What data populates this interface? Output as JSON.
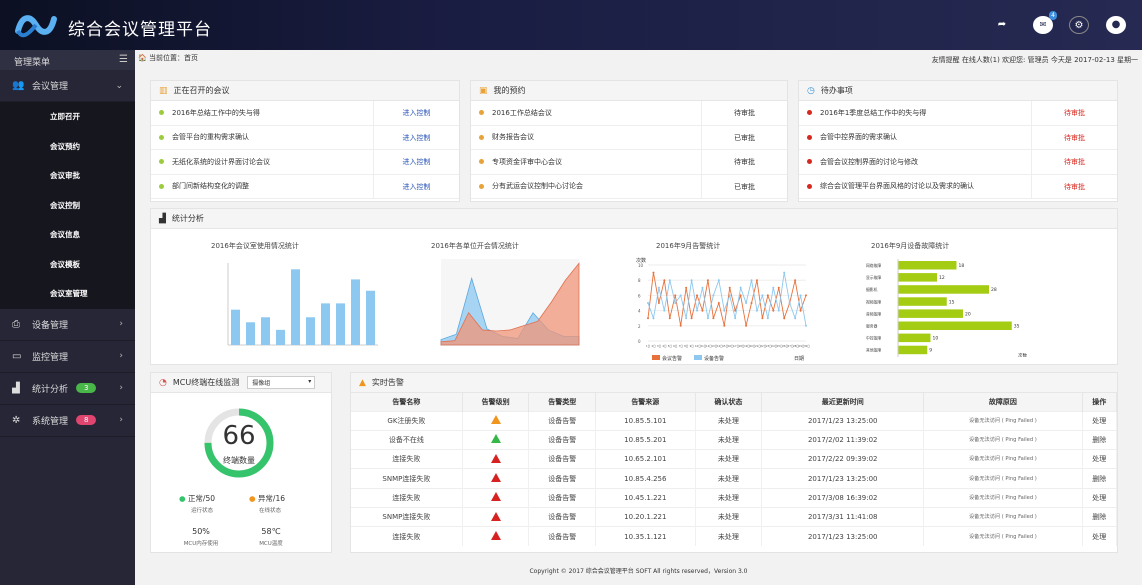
{
  "app": {
    "title": "综合会议管理平台",
    "mail_badge": "4"
  },
  "sidebar": {
    "header": "管理菜单",
    "menus": [
      {
        "label": "会议管理",
        "icon": "users-icon"
      },
      {
        "label": "设备管理",
        "icon": "printer-icon"
      },
      {
        "label": "监控管理",
        "icon": "monitor-icon"
      },
      {
        "label": "统计分析",
        "icon": "chart-icon",
        "badge": "3"
      },
      {
        "label": "系统管理",
        "icon": "gear-icon",
        "badge": "8"
      }
    ],
    "submenu": [
      "立即召开",
      "会议预约",
      "会议审批",
      "会议控制",
      "会议信息",
      "会议模板",
      "会议室管理"
    ]
  },
  "breadcrumb": {
    "label": "当前位置：首页",
    "right": "友情提醒  在线人数(1) 欢迎您: 管理员 今天是 2017-02-13 星期一"
  },
  "meetings": {
    "title": "正在召开的会议",
    "items": [
      {
        "name": "2016年总结工作中的失与得",
        "action": "进入控制"
      },
      {
        "name": "会管平台的重构需求确认",
        "action": "进入控制"
      },
      {
        "name": "无纸化系统的设计界面讨论会议",
        "action": "进入控制"
      },
      {
        "name": "部门间新结构变化的调整",
        "action": "进入控制"
      }
    ]
  },
  "reservations": {
    "title": "我的预约",
    "items": [
      {
        "name": "2016工作总结会议",
        "status": "待审批"
      },
      {
        "name": "财务报告会议",
        "status": "已审批"
      },
      {
        "name": "专项资金评审中心会议",
        "status": "待审批"
      },
      {
        "name": "分有武运会议控制中心讨论会",
        "status": "已审批"
      }
    ]
  },
  "todos": {
    "title": "待办事项",
    "items": [
      {
        "name": "2016年1季度总结工作中的失与得",
        "status": "待审批"
      },
      {
        "name": "会管中控界面的需求确认",
        "status": "待审批"
      },
      {
        "name": "会管会议控制界面的讨论与修改",
        "status": "待审批"
      },
      {
        "name": "综合会议管理平台界面风格的讨论以及需求的确认",
        "status": "待审批"
      }
    ]
  },
  "stats": {
    "title": "统计分析",
    "charts": [
      "2016年会议室使用情况统计",
      "2016年各单位开会情况统计",
      "2016年9月告警统计",
      "2016年9月设备故障统计"
    ]
  },
  "chart_data": [
    {
      "type": "bar",
      "title": "2016年会议室使用情况统计",
      "values": [
        28,
        18,
        22,
        12,
        60,
        22,
        33,
        33,
        52,
        43
      ]
    },
    {
      "type": "area",
      "title": "2016年各单位开会情况统计",
      "series": [
        {
          "name": "s1",
          "values": [
            5,
            10,
            62,
            15,
            8,
            6,
            30,
            14,
            8,
            8
          ]
        },
        {
          "name": "s2",
          "values": [
            3,
            4,
            30,
            14,
            13,
            14,
            18,
            22,
            40,
            60,
            76
          ]
        }
      ]
    },
    {
      "type": "line",
      "title": "2016年9月告警统计",
      "ylabel": "次数",
      "xlabel": "日期",
      "ylim": [
        0,
        10
      ],
      "x": [
        "1日",
        "2日",
        "3日",
        "4日",
        "5日",
        "6日",
        "7日",
        "8日",
        "9日",
        "10日",
        "11日",
        "12日",
        "13日",
        "14日",
        "15日",
        "16日",
        "17日",
        "18日",
        "19日",
        "20日",
        "21日",
        "22日",
        "23日",
        "24日",
        "25日",
        "26日",
        "27日",
        "28日",
        "29日",
        "30日"
      ],
      "series": [
        {
          "name": "会议告警",
          "color": "#e8703a",
          "values": [
            3,
            9,
            5,
            8,
            3,
            6,
            2,
            7,
            3,
            6,
            4,
            8,
            3,
            5,
            2,
            7,
            4,
            6,
            2,
            5,
            8,
            3,
            6,
            4,
            7,
            3,
            5,
            8,
            4,
            6
          ]
        },
        {
          "name": "设备告警",
          "color": "#8cc8f0",
          "values": [
            5,
            3,
            7,
            4,
            8,
            5,
            6,
            3,
            8,
            4,
            7,
            3,
            6,
            8,
            4,
            6,
            3,
            7,
            5,
            8,
            4,
            6,
            3,
            7,
            4,
            9,
            5,
            3,
            6,
            2
          ]
        }
      ]
    },
    {
      "type": "bar",
      "orientation": "horizontal",
      "title": "2016年9月设备故障统计",
      "xlabel": "次数",
      "categories": [
        "网络故障",
        "显示故障",
        "摄影机",
        "视频故障",
        "音频故障",
        "服务器",
        "中控故障",
        "其他故障"
      ],
      "values": [
        18,
        12,
        28,
        15,
        20,
        35,
        10,
        9
      ],
      "xlim": [
        0,
        40
      ]
    }
  ],
  "mcu": {
    "title": "MCU终端在线监测",
    "select": "摄像组",
    "count": "66",
    "count_label": "终端数量",
    "normal": "正常/50",
    "normal_sub": "运行状态",
    "abnormal": "异常/16",
    "abnormal_sub": "在线状态",
    "mem": "50%",
    "mem_label": "MCU内存使用",
    "temp": "58℃",
    "temp_label": "MCU温度"
  },
  "alarms": {
    "title": "实时告警",
    "headers": [
      "告警名称",
      "告警级别",
      "告警类型",
      "告警来源",
      "确认状态",
      "最近更新时间",
      "故障原因",
      "操作"
    ],
    "rows": [
      {
        "name": "GK注册失败",
        "level": "orange",
        "type": "设备告警",
        "src": "10.85.5.101",
        "state": "未处理",
        "time": "2017/1/23 13:25:00",
        "reason": "设备无法访问 ( Ping Failed )",
        "op": "处理"
      },
      {
        "name": "设备不在线",
        "level": "green",
        "type": "设备告警",
        "src": "10.85.5.201",
        "state": "未处理",
        "time": "2017/2/02 11:39:02",
        "reason": "设备无法访问 ( Ping Failed )",
        "op": "删除"
      },
      {
        "name": "连接失败",
        "level": "red",
        "type": "设备告警",
        "src": "10.65.2.101",
        "state": "未处理",
        "time": "2017/2/22 09:39:02",
        "reason": "设备无法访问 ( Ping Failed )",
        "op": "处理"
      },
      {
        "name": "SNMP连接失败",
        "level": "red",
        "type": "设备告警",
        "src": "10.85.4.256",
        "state": "未处理",
        "time": "2017/1/23 13:25:00",
        "reason": "设备无法访问 ( Ping Failed )",
        "op": "删除"
      },
      {
        "name": "连接失败",
        "level": "red",
        "type": "设备告警",
        "src": "10.45.1.221",
        "state": "未处理",
        "time": "2017/3/08 16:39:02",
        "reason": "设备无法访问 ( Ping Failed )",
        "op": "处理"
      },
      {
        "name": "SNMP连接失败",
        "level": "red",
        "type": "设备告警",
        "src": "10.20.1.221",
        "state": "未处理",
        "time": "2017/3/31 11:41:08",
        "reason": "设备无法访问 ( Ping Failed )",
        "op": "删除"
      },
      {
        "name": "连接失败",
        "level": "red",
        "type": "设备告警",
        "src": "10.35.1.121",
        "state": "未处理",
        "time": "2017/1/23 13:25:00",
        "reason": "设备无法访问 ( Ping Failed )",
        "op": "处理"
      }
    ]
  },
  "footer": "Copyright © 2017  综合会议管理平台 SOFT  All rights reserved，Version 3.0"
}
